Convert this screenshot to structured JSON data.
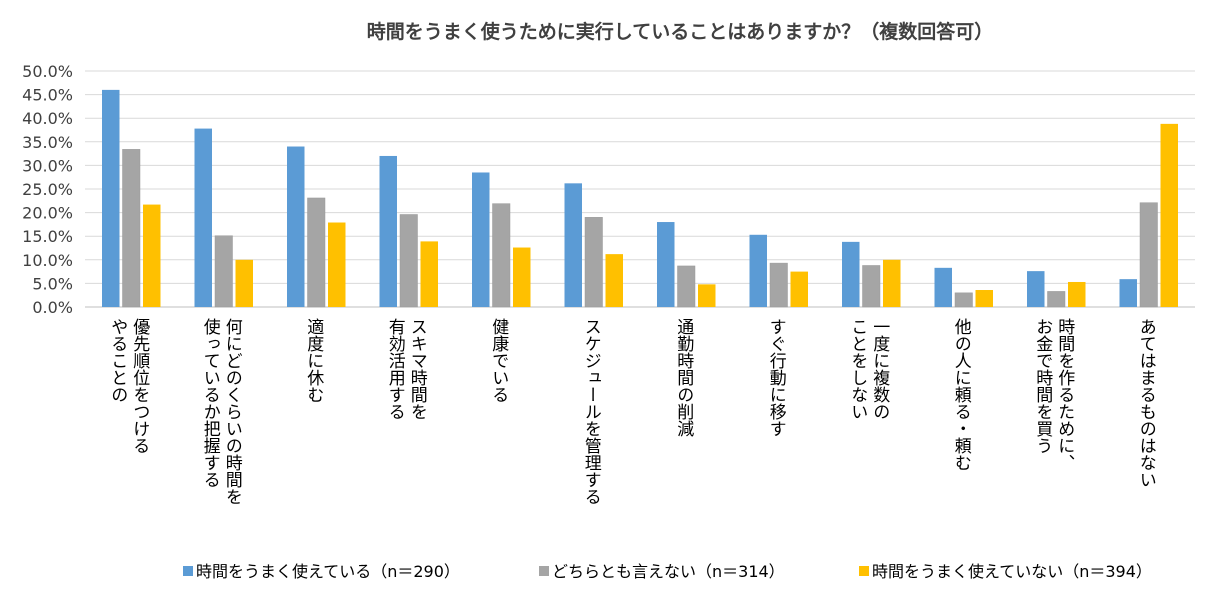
{
  "chart_data": {
    "type": "bar",
    "title": "時間をうまく使うために実行していることはありますか？（複数回答可）",
    "xlabel": "",
    "ylabel": "",
    "ylim": [
      0,
      50
    ],
    "ytick_labels": [
      "0.0%",
      "5.0%",
      "10.0%",
      "15.0%",
      "20.0%",
      "25.0%",
      "30.0%",
      "35.0%",
      "40.0%",
      "45.0%",
      "50.0%"
    ],
    "categories": [
      [
        "優先順位をつける",
        "やることの"
      ],
      [
        "何にどのくらいの時間を",
        "使っているか把握する"
      ],
      [
        "適度に休む"
      ],
      [
        "スキマ時間を",
        "有効活用する"
      ],
      [
        "健康でいる"
      ],
      [
        "スケジュールを管理する"
      ],
      [
        "通勤時間の削減"
      ],
      [
        "すぐ行動に移す"
      ],
      [
        "一度に複数の",
        "ことをしない"
      ],
      [
        "他の人に頼る・頼む"
      ],
      [
        "時間を作るために、",
        "お金で時間を買う"
      ],
      [
        "あてはまるものはない"
      ]
    ],
    "series": [
      {
        "name": "時間をうまく使えている（n＝290）",
        "color": "#5b9bd5",
        "values": [
          46.0,
          37.8,
          34.0,
          32.0,
          28.5,
          26.2,
          18.0,
          15.3,
          13.8,
          8.3,
          7.6,
          5.9
        ]
      },
      {
        "name": "どちらとも言えない（n＝314）",
        "color": "#a5a5a5",
        "values": [
          33.4,
          15.1,
          23.1,
          19.6,
          21.9,
          19.0,
          8.7,
          9.3,
          8.8,
          3.0,
          3.3,
          22.1
        ]
      },
      {
        "name": "時間をうまく使えていない（n＝394）",
        "color": "#ffc000",
        "values": [
          21.7,
          10.0,
          17.9,
          13.9,
          12.6,
          11.2,
          4.8,
          7.5,
          10.0,
          3.6,
          5.3,
          38.8
        ]
      }
    ],
    "grid": true,
    "legend_position": "bottom"
  }
}
